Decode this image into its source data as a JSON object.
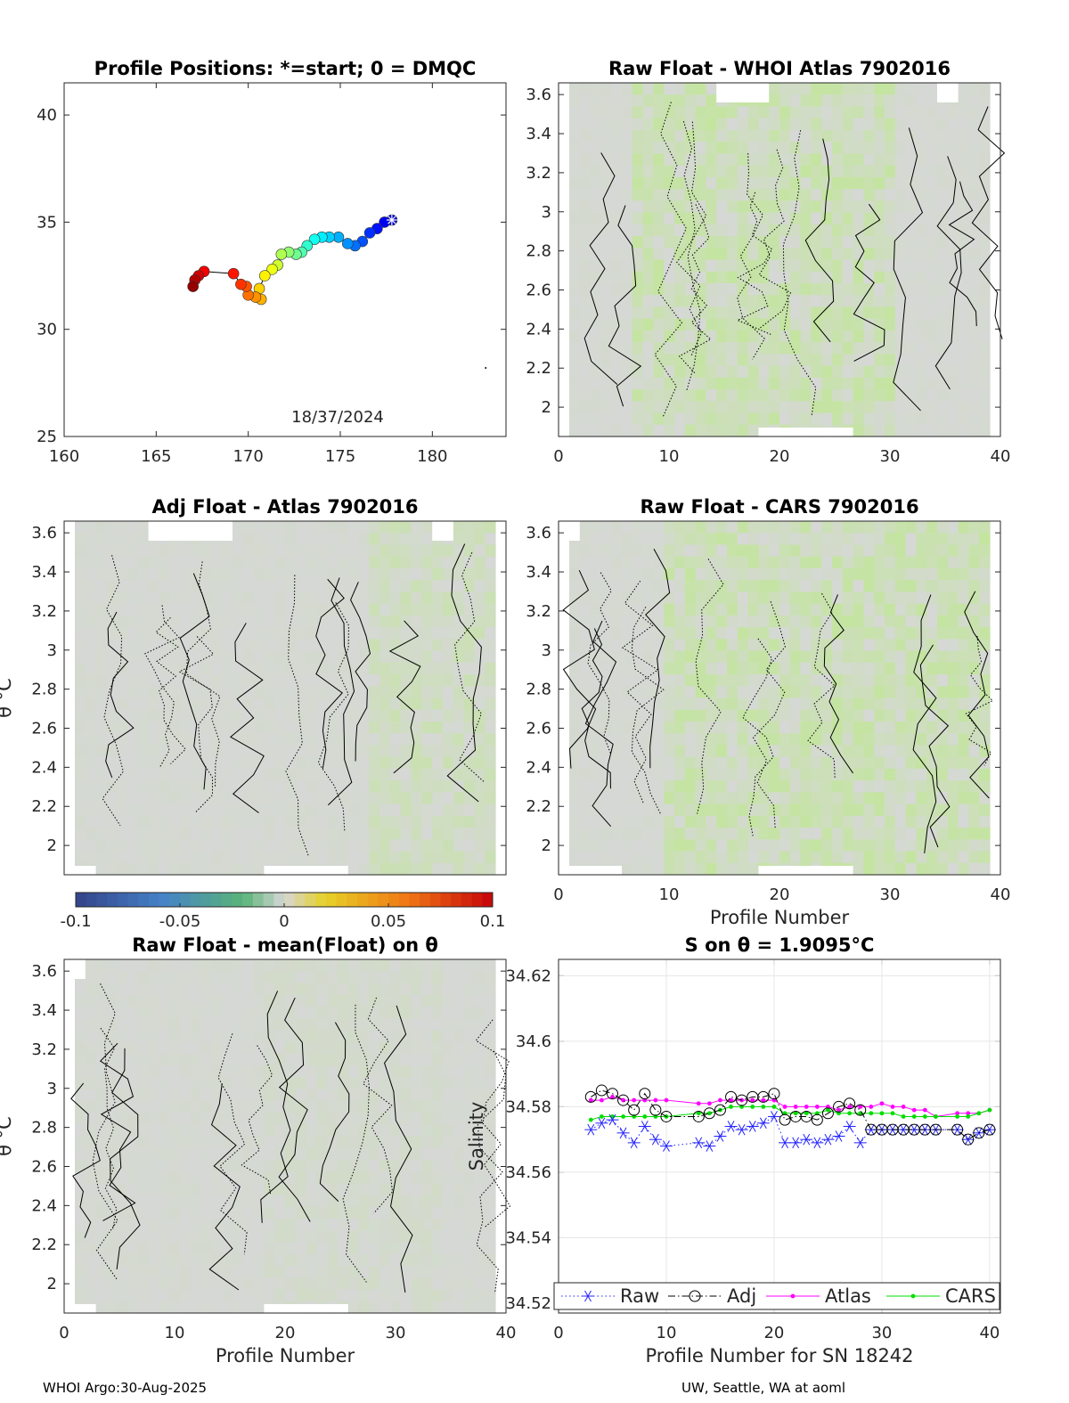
{
  "footer": {
    "left": "WHOI Argo:30-Aug-2025",
    "right": "UW, Seattle, WA at aoml"
  },
  "colorbar": {
    "ticks": [
      "-0.1",
      "-0.05",
      "0",
      "0.05",
      "0.1"
    ],
    "range": [
      -0.1,
      0.1
    ]
  },
  "chart_data": [
    {
      "id": "positions",
      "type": "scatter",
      "title": "Profile Positions: *=start; 0 = DMQC",
      "annotation": "18/37/2024",
      "xlim": [
        160,
        184
      ],
      "ylim": [
        25,
        41.5
      ],
      "xticks": [
        "160",
        "165",
        "170",
        "175",
        "180"
      ],
      "yticks": [
        "25",
        "30",
        "35",
        "40"
      ],
      "start": [
        177.8,
        35.1
      ],
      "track": [
        [
          177.8,
          35.1
        ],
        [
          177.4,
          35.0
        ],
        [
          177.0,
          34.7
        ],
        [
          176.6,
          34.5
        ],
        [
          176.2,
          34.1
        ],
        [
          175.8,
          33.9
        ],
        [
          175.4,
          34.0
        ],
        [
          174.9,
          34.3
        ],
        [
          174.4,
          34.3
        ],
        [
          174.0,
          34.3
        ],
        [
          173.6,
          34.2
        ],
        [
          173.2,
          33.9
        ],
        [
          172.9,
          33.6
        ],
        [
          172.6,
          33.5
        ],
        [
          172.2,
          33.6
        ],
        [
          171.8,
          33.5
        ],
        [
          171.6,
          33.0
        ],
        [
          171.3,
          32.8
        ],
        [
          170.9,
          32.5
        ],
        [
          170.6,
          31.9
        ],
        [
          170.7,
          31.4
        ],
        [
          170.4,
          31.5
        ],
        [
          170.0,
          31.6
        ],
        [
          169.9,
          32.0
        ],
        [
          169.6,
          32.1
        ],
        [
          169.2,
          32.6
        ],
        [
          167.6,
          32.7
        ],
        [
          167.3,
          32.5
        ],
        [
          167.1,
          32.3
        ],
        [
          167.0,
          32.0
        ]
      ],
      "outlier": [
        182.9,
        28.2
      ]
    },
    {
      "id": "raw-atlas",
      "type": "heatmap",
      "title": "Raw Float - WHOI Atlas  7902016",
      "xlim": [
        0,
        40
      ],
      "ylim": [
        1.85,
        3.66
      ],
      "xticks": [
        "0",
        "10",
        "20",
        "30",
        "40"
      ],
      "yticks": [
        "2",
        "2.2",
        "2.4",
        "2.6",
        "2.8",
        "3",
        "3.2",
        "3.4",
        "3.6"
      ]
    },
    {
      "id": "adj-atlas",
      "type": "heatmap",
      "title": "Adj Float - Atlas  7902016",
      "ylabel": "θ °C",
      "xlim": [
        0,
        40
      ],
      "ylim": [
        1.85,
        3.66
      ],
      "xticks": [],
      "yticks": [
        "2",
        "2.2",
        "2.4",
        "2.6",
        "2.8",
        "3",
        "3.2",
        "3.4",
        "3.6"
      ]
    },
    {
      "id": "raw-cars",
      "type": "heatmap",
      "title": "Raw Float - CARS  7902016",
      "xlabel": "Profile Number",
      "xlim": [
        0,
        40
      ],
      "ylim": [
        1.85,
        3.66
      ],
      "xticks": [
        "0",
        "10",
        "20",
        "30",
        "40"
      ],
      "yticks": [
        "2",
        "2.2",
        "2.4",
        "2.6",
        "2.8",
        "3",
        "3.2",
        "3.4",
        "3.6"
      ]
    },
    {
      "id": "raw-mean",
      "type": "heatmap",
      "title": "Raw Float - mean(Float) on θ",
      "ylabel": "θ °C",
      "xlabel": "Profile Number",
      "xlim": [
        0,
        40
      ],
      "ylim": [
        1.85,
        3.66
      ],
      "xticks": [
        "0",
        "10",
        "20",
        "30",
        "40"
      ],
      "yticks": [
        "2",
        "2.2",
        "2.4",
        "2.6",
        "2.8",
        "3",
        "3.2",
        "3.4",
        "3.6"
      ]
    },
    {
      "id": "salinity",
      "type": "line",
      "title": "S on θ = 1.9095°C",
      "xlabel": "Profile Number for SN 18242",
      "ylabel": "Salinity",
      "xlim": [
        0,
        41
      ],
      "ylim": [
        34.517,
        34.625
      ],
      "xticks": [
        "0",
        "10",
        "20",
        "30",
        "40"
      ],
      "yticks": [
        "34.52",
        "34.54",
        "34.56",
        "34.58",
        "34.6",
        "34.62"
      ],
      "x": [
        3,
        4,
        5,
        6,
        7,
        8,
        9,
        10,
        13,
        14,
        15,
        16,
        17,
        18,
        19,
        20,
        21,
        22,
        23,
        24,
        25,
        26,
        27,
        28,
        29,
        30,
        31,
        32,
        33,
        34,
        35,
        37,
        38,
        39,
        40
      ],
      "series": [
        {
          "name": "Raw",
          "color": "#2222ff",
          "values": [
            34.573,
            34.575,
            34.576,
            34.572,
            34.569,
            34.574,
            34.57,
            34.568,
            34.569,
            34.568,
            34.571,
            34.574,
            34.573,
            34.574,
            34.575,
            34.577,
            34.569,
            34.569,
            34.57,
            34.569,
            34.57,
            34.571,
            34.574,
            34.569,
            34.573,
            34.573,
            34.573,
            34.573,
            34.573,
            34.573,
            34.573,
            34.573,
            34.57,
            34.572,
            34.573
          ]
        },
        {
          "name": "Adj",
          "color": "#000000",
          "values": [
            34.583,
            34.585,
            34.584,
            34.582,
            34.579,
            34.584,
            34.579,
            34.577,
            34.577,
            34.578,
            34.579,
            34.583,
            34.582,
            34.583,
            34.583,
            34.584,
            34.576,
            34.577,
            34.577,
            34.576,
            34.578,
            34.58,
            34.581,
            34.579,
            34.573,
            34.573,
            34.573,
            34.573,
            34.573,
            34.573,
            34.573,
            34.573,
            34.57,
            34.572,
            34.573
          ]
        },
        {
          "name": "Atlas",
          "color": "#ff00ff",
          "values": [
            34.582,
            34.582,
            34.583,
            34.582,
            34.582,
            34.582,
            34.582,
            34.582,
            34.581,
            34.581,
            34.582,
            34.582,
            34.582,
            34.582,
            34.582,
            34.582,
            34.58,
            34.58,
            34.58,
            34.58,
            34.58,
            34.579,
            34.58,
            34.58,
            34.58,
            34.581,
            34.58,
            34.58,
            34.579,
            34.579,
            34.577,
            34.578,
            34.578,
            34.578,
            34.579
          ]
        },
        {
          "name": "CARS",
          "color": "#00dd00",
          "values": [
            34.576,
            34.577,
            34.577,
            34.577,
            34.577,
            34.577,
            34.577,
            34.577,
            34.578,
            34.578,
            34.579,
            34.58,
            34.58,
            34.58,
            34.58,
            34.58,
            34.578,
            34.578,
            34.578,
            34.578,
            34.579,
            34.578,
            34.578,
            34.578,
            34.578,
            34.578,
            34.578,
            34.577,
            34.577,
            34.577,
            34.577,
            34.577,
            34.577,
            34.578,
            34.579
          ]
        }
      ],
      "legend": [
        "Raw",
        "Adj",
        "Atlas",
        "CARS"
      ]
    }
  ]
}
